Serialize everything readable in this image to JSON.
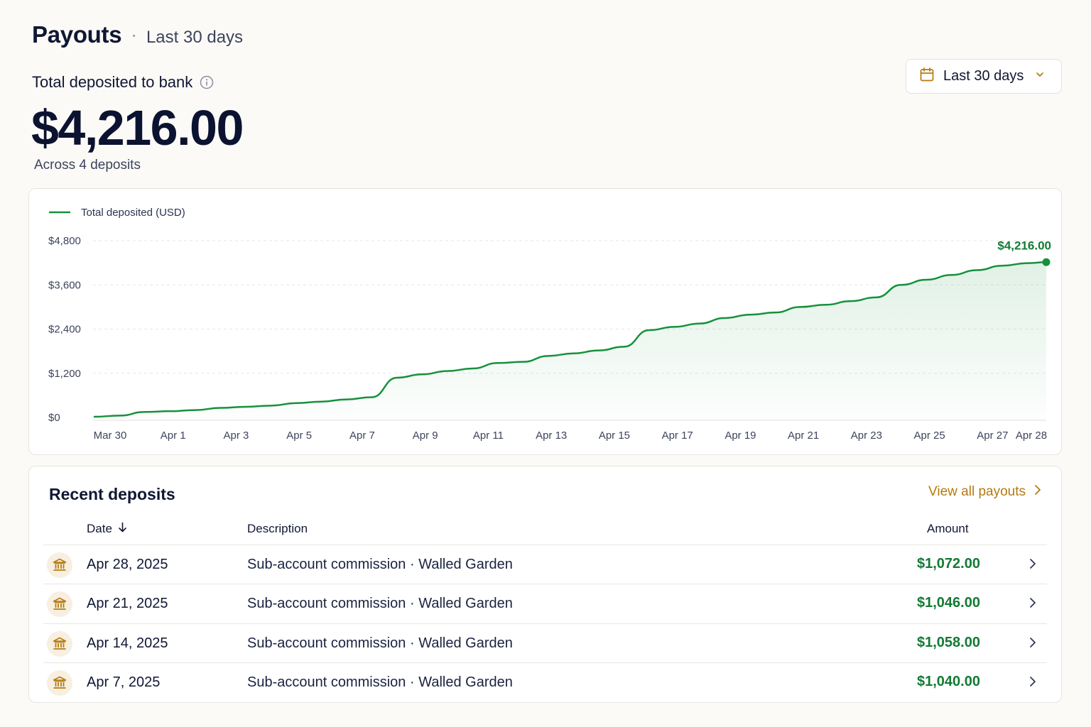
{
  "header": {
    "title": "Payouts",
    "separator": "·",
    "subtitle": "Last 30 days"
  },
  "summary": {
    "label": "Total deposited to bank",
    "amount": "$4,216.00",
    "sub": "Across 4 deposits"
  },
  "range_picker": {
    "label": "Last 30 days",
    "icon": "calendar-icon"
  },
  "chart_data": {
    "type": "area",
    "legend": "Total deposited (USD)",
    "end_label": "$4,216.00",
    "y_ticks": [
      "$0",
      "$1,200",
      "$2,400",
      "$3,600",
      "$4,800"
    ],
    "y_tick_values": [
      0,
      1200,
      2400,
      3600,
      4800
    ],
    "ylim": [
      0,
      4800
    ],
    "x_ticks": [
      "Mar 30",
      "Apr 1",
      "Apr 3",
      "Apr 5",
      "Apr 7",
      "Apr 9",
      "Apr 11",
      "Apr 13",
      "Apr 15",
      "Apr 17",
      "Apr 19",
      "Apr 21",
      "Apr 23",
      "Apr 25",
      "Apr 27",
      "Apr 28"
    ],
    "x_tick_days": [
      0,
      2,
      4,
      6,
      8,
      10,
      12,
      14,
      16,
      18,
      20,
      22,
      24,
      26,
      28,
      29
    ],
    "grid": true,
    "series": [
      {
        "name": "Total deposited (USD)",
        "color": "#16913c",
        "x": [
          0,
          0.8,
          1.6,
          2.4,
          3.2,
          4.0,
          4.8,
          5.6,
          6.4,
          7.2,
          8.0,
          8.8,
          9.6,
          10.4,
          11.2,
          12.0,
          12.8,
          13.6,
          14.4,
          15.2,
          16.0,
          16.8,
          17.6,
          18.4,
          19.2,
          20.0,
          20.8,
          21.6,
          22.4,
          23.2,
          24.0,
          24.8,
          25.6,
          26.4,
          27.2,
          28.0,
          28.8,
          29.6,
          30.2
        ],
        "y": [
          20,
          50,
          150,
          170,
          200,
          260,
          290,
          320,
          390,
          430,
          490,
          550,
          1080,
          1170,
          1260,
          1330,
          1480,
          1510,
          1670,
          1740,
          1820,
          1920,
          2370,
          2460,
          2550,
          2700,
          2790,
          2850,
          3000,
          3060,
          3160,
          3260,
          3600,
          3740,
          3870,
          4000,
          4120,
          4190,
          4216
        ]
      }
    ]
  },
  "deposits": {
    "title": "Recent deposits",
    "view_all": "View all payouts",
    "columns": {
      "date": "Date",
      "description": "Description",
      "amount": "Amount"
    },
    "rows": [
      {
        "date": "Apr 28, 2025",
        "description": "Sub-account commission · Walled Garden",
        "amount": "$1,072.00"
      },
      {
        "date": "Apr 21, 2025",
        "description": "Sub-account commission · Walled Garden",
        "amount": "$1,046.00"
      },
      {
        "date": "Apr 14, 2025",
        "description": "Sub-account commission · Walled Garden",
        "amount": "$1,058.00"
      },
      {
        "date": "Apr 7, 2025",
        "description": "Sub-account commission · Walled Garden",
        "amount": "$1,040.00"
      }
    ]
  },
  "colors": {
    "accent_green": "#16913c",
    "link_gold": "#b57a10",
    "text_dark": "#0f1733"
  }
}
